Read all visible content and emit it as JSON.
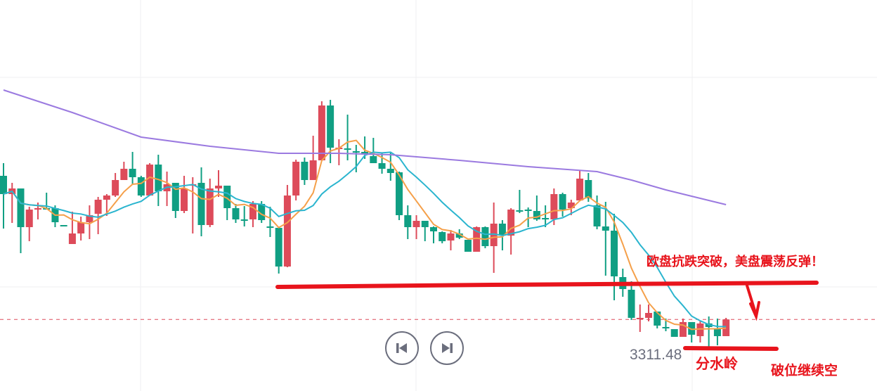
{
  "chart_data": {
    "type": "candlestick",
    "ylim": [
      3301.3,
      3356.9
    ],
    "grid": true,
    "colors": {
      "up": "#dd4b5a",
      "down": "#109f83",
      "ma_fast": "#f5a04a",
      "ma_slow": "#2bb5cf",
      "ma_long": "#9b7ae0",
      "annotation": "#e8141c",
      "gridline": "#efeff2"
    },
    "ohlc": [
      [
        3331.9,
        3333.7,
        3324.4,
        3329.3
      ],
      [
        3329.3,
        3330.9,
        3325.2,
        3330.1
      ],
      [
        3330.1,
        3330.1,
        3320.9,
        3324.6
      ],
      [
        3324.6,
        3327.5,
        3322.6,
        3327.1
      ],
      [
        3327.1,
        3328.1,
        3325.7,
        3327.3
      ],
      [
        3327.3,
        3329.5,
        3327.2,
        3327.2
      ],
      [
        3327.3,
        3327.7,
        3324.6,
        3325.3
      ],
      [
        3324.9,
        3324.9,
        3324.8,
        3324.8
      ],
      [
        3322.2,
        3326.8,
        3322.2,
        3323.7
      ],
      [
        3323.7,
        3326.1,
        3322.7,
        3325.3
      ],
      [
        3325.3,
        3327.7,
        3322.9,
        3326.3
      ],
      [
        3326.5,
        3328.9,
        3323.6,
        3328.5
      ],
      [
        3328.5,
        3329.3,
        3326.2,
        3329.1
      ],
      [
        3329.1,
        3332.3,
        3328.9,
        3331.3
      ],
      [
        3331.3,
        3333.9,
        3331.3,
        3332.9
      ],
      [
        3332.9,
        3335.3,
        3330.7,
        3331.7
      ],
      [
        3331.7,
        3331.9,
        3328.9,
        3329.1
      ],
      [
        3329.1,
        3333.7,
        3329.1,
        3333.5
      ],
      [
        3333.5,
        3334.9,
        3327.6,
        3329.7
      ],
      [
        3329.7,
        3332.5,
        3327.6,
        3330.7
      ],
      [
        3330.9,
        3330.9,
        3325.9,
        3326.9
      ],
      [
        3326.9,
        3331.9,
        3326.6,
        3330.1
      ],
      [
        3330.5,
        3331.7,
        3323.7,
        3330.7
      ],
      [
        3330.9,
        3333.1,
        3323.3,
        3324.9
      ],
      [
        3324.9,
        3331.5,
        3324.6,
        3330.1
      ],
      [
        3330.1,
        3332.7,
        3328.9,
        3330.5
      ],
      [
        3330.5,
        3330.5,
        3325.6,
        3327.3
      ],
      [
        3327.3,
        3327.9,
        3325.2,
        3325.7
      ],
      [
        3325.7,
        3327.6,
        3324.7,
        3325.6
      ],
      [
        3325.7,
        3328.3,
        3324.6,
        3327.9
      ],
      [
        3327.9,
        3328.3,
        3325.2,
        3325.6
      ],
      [
        3324.7,
        3327.5,
        3323.2,
        3324.6
      ],
      [
        3324.5,
        3324.5,
        3318.0,
        3319.0
      ],
      [
        3319.0,
        3330.6,
        3318.9,
        3329.1
      ],
      [
        3329.1,
        3334.2,
        3328.4,
        3333.9
      ],
      [
        3333.9,
        3334.5,
        3330.6,
        3331.3
      ],
      [
        3331.3,
        3337.6,
        3331.3,
        3334.1
      ],
      [
        3334.1,
        3342.5,
        3334.1,
        3341.9
      ],
      [
        3341.9,
        3342.7,
        3333.7,
        3335.9
      ],
      [
        3335.7,
        3337.1,
        3333.4,
        3335.9
      ],
      [
        3335.8,
        3340.6,
        3334.1,
        3335.7
      ],
      [
        3335.4,
        3336.3,
        3332.4,
        3335.3
      ],
      [
        3335.3,
        3337.5,
        3334.3,
        3334.9
      ],
      [
        3334.7,
        3337.3,
        3333.7,
        3333.7
      ],
      [
        3333.7,
        3335.2,
        3332.2,
        3332.9
      ],
      [
        3332.9,
        3335.2,
        3331.2,
        3332.3
      ],
      [
        3332.4,
        3332.5,
        3325.6,
        3326.3
      ],
      [
        3326.3,
        3327.7,
        3322.9,
        3324.6
      ],
      [
        3324.6,
        3326.3,
        3322.9,
        3325.5
      ],
      [
        3325.5,
        3325.5,
        3322.6,
        3324.6
      ],
      [
        3324.6,
        3324.7,
        3322.3,
        3324.0
      ],
      [
        3323.9,
        3324.0,
        3322.3,
        3322.6
      ],
      [
        3322.7,
        3324.2,
        3321.3,
        3323.7
      ],
      [
        3323.7,
        3324.3,
        3322.9,
        3323.1
      ],
      [
        3322.8,
        3322.8,
        3321.1,
        3321.1
      ],
      [
        3321.1,
        3324.7,
        3321.1,
        3324.6
      ],
      [
        3324.6,
        3324.7,
        3321.6,
        3321.9
      ],
      [
        3321.9,
        3328.1,
        3318.1,
        3325.1
      ],
      [
        3325.1,
        3325.6,
        3321.3,
        3323.4
      ],
      [
        3323.4,
        3327.3,
        3320.7,
        3327.1
      ],
      [
        3327.0,
        3329.9,
        3326.6,
        3326.9
      ],
      [
        3327.1,
        3327.4,
        3324.6,
        3327.0
      ],
      [
        3326.9,
        3329.1,
        3325.5,
        3325.7
      ],
      [
        3325.9,
        3327.7,
        3324.6,
        3325.8
      ],
      [
        3325.7,
        3330.1,
        3324.9,
        3329.3
      ],
      [
        3329.3,
        3329.5,
        3326.1,
        3327.1
      ],
      [
        3327.3,
        3328.5,
        3326.3,
        3328.1
      ],
      [
        3328.4,
        3332.6,
        3328.4,
        3331.5
      ],
      [
        3331.3,
        3332.3,
        3328.2,
        3328.7
      ],
      [
        3327.7,
        3329.1,
        3324.3,
        3324.7
      ],
      [
        3324.7,
        3328.2,
        3317.7,
        3324.1
      ],
      [
        3324.1,
        3326.5,
        3314.2,
        3317.6
      ],
      [
        3317.5,
        3318.7,
        3314.7,
        3315.8
      ],
      [
        3315.7,
        3316.9,
        3311.4,
        3311.7
      ],
      [
        3311.6,
        3313.6,
        3309.7,
        3311.7
      ],
      [
        3311.7,
        3313.6,
        3311.2,
        3312.4
      ],
      [
        3312.6,
        3312.6,
        3310.2,
        3310.6
      ],
      [
        3310.4,
        3311.6,
        3309.8,
        3310.3
      ],
      [
        3310.1,
        3310.1,
        3309.0,
        3309.0
      ],
      [
        3309.0,
        3311.6,
        3309.0,
        3311.1
      ],
      [
        3311.1,
        3311.1,
        3308.2,
        3309.3
      ],
      [
        3309.1,
        3311.3,
        3308.2,
        3310.9
      ],
      [
        3310.9,
        3311.9,
        3307.6,
        3310.4
      ],
      [
        3310.1,
        3311.6,
        3307.8,
        3309.1
      ],
      [
        3309.1,
        3311.7,
        3309.1,
        3311.48
      ]
    ],
    "ma_periods": [
      5,
      10
    ],
    "ma_long": {
      "index": [
        0,
        8,
        16,
        24,
        32,
        39,
        45,
        53,
        61,
        69,
        73,
        77,
        84
      ],
      "values": [
        3344.1,
        3340.9,
        3337.4,
        3336.1,
        3335.1,
        3335.1,
        3334.9,
        3334.1,
        3333.2,
        3332.5,
        3331.3,
        3329.9,
        3327.8
      ]
    },
    "current_price": 3311.48,
    "current_price_label": "3311.48",
    "support_line_price": 3315.0,
    "watershed_price": 3306.8
  },
  "annotations": {
    "headline": "欧盘抗跌突破，美盘震荡反弹！",
    "watershed": "分水岭",
    "breakdown": "破位继续空"
  },
  "controls": {
    "prev_icon": "skip-back-icon",
    "next_icon": "skip-forward-icon"
  }
}
